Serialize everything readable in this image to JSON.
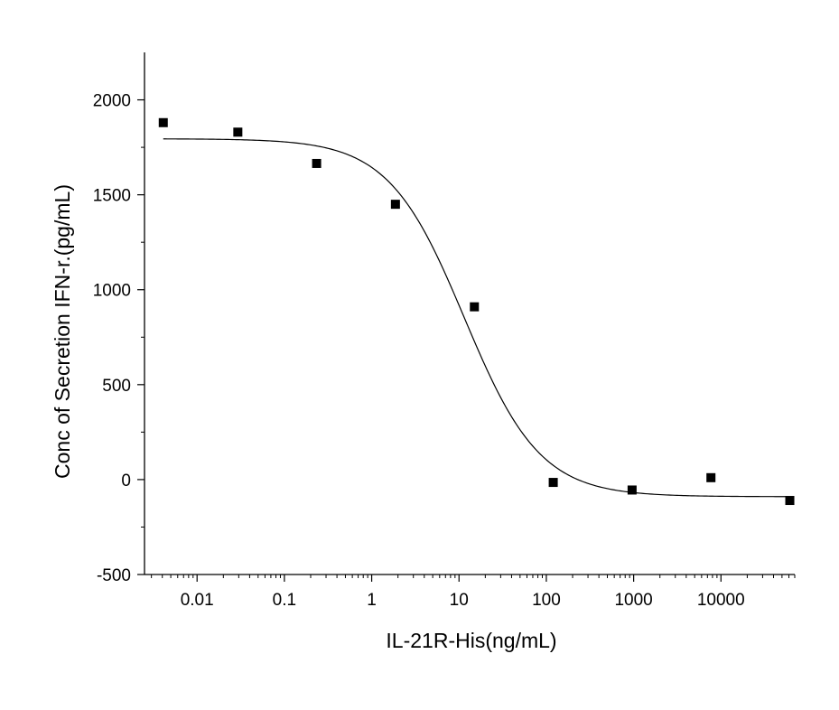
{
  "chart_data": {
    "type": "scatter",
    "title": "",
    "xlabel": "IL-21R-His(ng/mL)",
    "ylabel": "Conc of Secretion IFN-r.(pg/mL)",
    "x_scale": "log10",
    "xlim": [
      0.0025,
      70000
    ],
    "ylim": [
      -500,
      2250
    ],
    "x_ticks": [
      0.01,
      0.1,
      1,
      10,
      100,
      1000,
      10000
    ],
    "x_tick_labels": [
      "0.01",
      "0.1",
      "1",
      "10",
      "100",
      "1000",
      "10000"
    ],
    "y_ticks": [
      -500,
      0,
      500,
      1000,
      1500,
      2000
    ],
    "y_tick_labels": [
      "-500",
      "0",
      "500",
      "1000",
      "1500",
      "2000"
    ],
    "grid": false,
    "legend": "none",
    "marker_color": "#000000",
    "line_color": "#000000",
    "points": [
      {
        "x": 0.0041,
        "y": 1880
      },
      {
        "x": 0.0293,
        "y": 1830
      },
      {
        "x": 0.234,
        "y": 1665
      },
      {
        "x": 1.87,
        "y": 1450
      },
      {
        "x": 15,
        "y": 910
      },
      {
        "x": 120,
        "y": -15
      },
      {
        "x": 960,
        "y": -55
      },
      {
        "x": 7680,
        "y": 10
      },
      {
        "x": 61440,
        "y": -110
      }
    ],
    "fit": {
      "model": "4PL",
      "top": 1795,
      "bottom": -90,
      "ec50": 11.5,
      "hill": 1.0
    }
  }
}
